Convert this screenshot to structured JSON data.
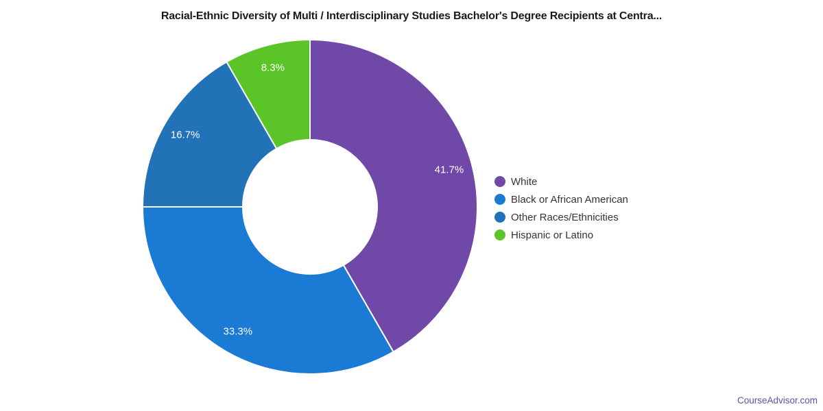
{
  "chart": {
    "title": "Racial-Ethnic Diversity of Multi / Interdisciplinary Studies Bachelor's Degree Recipients at Centra..."
  },
  "chart_data": {
    "type": "pie",
    "donut": true,
    "title": "Racial-Ethnic Diversity of Multi / Interdisciplinary Studies Bachelor's Degree Recipients at Centra...",
    "start_angle_deg": 0,
    "direction": "clockwise",
    "center": [
      452,
      302
    ],
    "outer_radius": 244,
    "inner_radius": 98,
    "label_radius": 210,
    "slice_stroke_color": "#ffffff",
    "slice_stroke_width": 2,
    "slice_label_color": "#ffffff",
    "legend_position": "right",
    "slices": [
      {
        "label": "White",
        "value": 41.7,
        "pct_label": "41.7%",
        "color": "#7048a8"
      },
      {
        "label": "Black or African American",
        "value": 33.3,
        "pct_label": "33.3%",
        "color": "#1a7ad4"
      },
      {
        "label": "Other Races/Ethnicities",
        "value": 16.7,
        "pct_label": "16.7%",
        "color": "#2272b8"
      },
      {
        "label": "Hispanic or Latino",
        "value": 8.3,
        "pct_label": "8.3%",
        "color": "#5ac428"
      }
    ]
  },
  "footer": {
    "brand": "CourseAdvisor.com"
  }
}
